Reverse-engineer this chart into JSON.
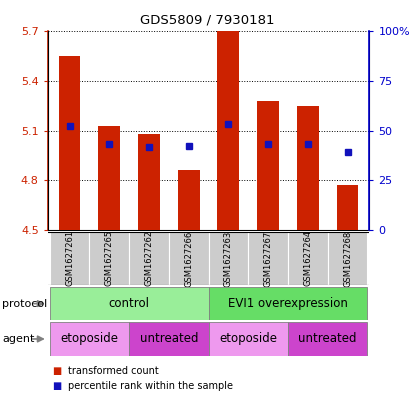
{
  "title": "GDS5809 / 7930181",
  "samples": [
    "GSM1627261",
    "GSM1627265",
    "GSM1627262",
    "GSM1627266",
    "GSM1627263",
    "GSM1627267",
    "GSM1627264",
    "GSM1627268"
  ],
  "bar_values": [
    5.55,
    5.13,
    5.08,
    4.86,
    5.7,
    5.28,
    5.25,
    4.77
  ],
  "dot_values": [
    5.13,
    5.02,
    5.0,
    5.01,
    5.14,
    5.02,
    5.02,
    4.97
  ],
  "ylim": [
    4.5,
    5.7
  ],
  "yticks_left": [
    4.5,
    4.8,
    5.1,
    5.4,
    5.7
  ],
  "yticks_right": [
    0,
    25,
    50,
    75,
    100
  ],
  "ytick_labels_right": [
    "0",
    "25",
    "50",
    "75",
    "100%"
  ],
  "bar_color": "#cc2200",
  "dot_color": "#1111bb",
  "bar_bottom": 4.5,
  "protocol_color_control": "#99ee99",
  "protocol_color_evi1": "#66dd66",
  "agent_etoposide_color": "#ee99ee",
  "agent_untreated_color": "#cc44cc",
  "sample_bg_color": "#cccccc",
  "legend_red_label": "transformed count",
  "legend_blue_label": "percentile rank within the sample",
  "left_axis_color": "#cc2200",
  "right_axis_color": "#0000cc"
}
